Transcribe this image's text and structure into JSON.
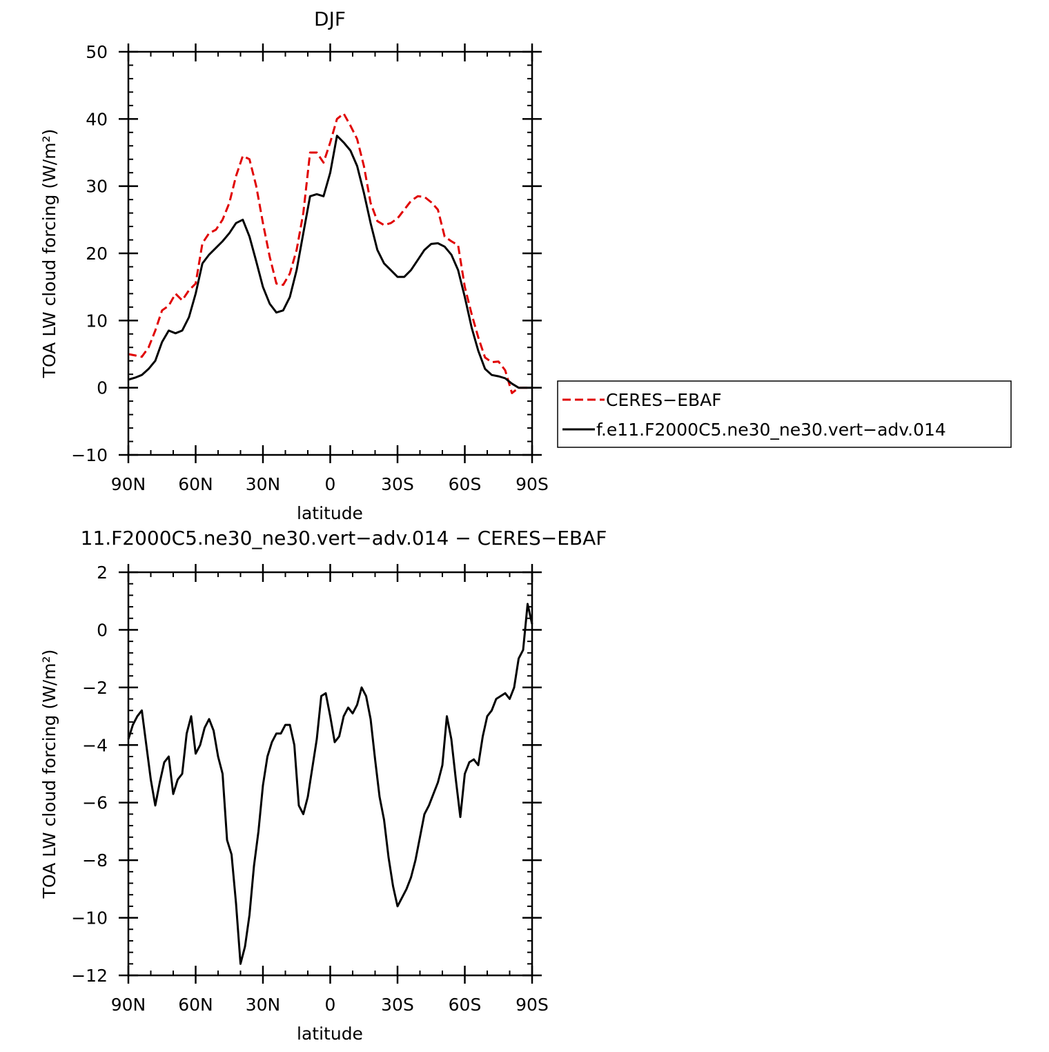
{
  "chart_data": [
    {
      "type": "line",
      "title": "DJF",
      "xlabel": "latitude",
      "ylabel": "TOA LW cloud forcing (W/m²)",
      "xlim": [
        90,
        -90
      ],
      "ylim": [
        -10,
        50
      ],
      "xticks": [
        90,
        60,
        30,
        0,
        -30,
        -60,
        -90
      ],
      "xtick_labels": [
        "90N",
        "60N",
        "30N",
        "0",
        "30S",
        "60S",
        "90S"
      ],
      "yticks": [
        -10,
        0,
        10,
        20,
        30,
        40,
        50
      ],
      "ytick_labels": [
        "−10",
        "0",
        "10",
        "20",
        "30",
        "40",
        "50"
      ],
      "legend_position": "right",
      "series": [
        {
          "name": "CERES−EBAF",
          "color": "#e00000",
          "style": "dashed",
          "x": [
            90,
            87,
            84,
            81,
            78,
            75,
            72,
            69,
            66,
            63,
            60,
            57,
            54,
            51,
            48,
            45,
            42,
            39,
            36,
            33,
            30,
            27,
            24,
            21,
            18,
            15,
            12,
            9,
            6,
            3,
            0,
            -3,
            -6,
            -9,
            -12,
            -15,
            -18,
            -21,
            -24,
            -27,
            -30,
            -33,
            -36,
            -39,
            -42,
            -45,
            -48,
            -51,
            -54,
            -57,
            -60,
            -63,
            -66,
            -69,
            -72,
            -75,
            -78,
            -81,
            -84,
            -87,
            -90
          ],
          "y": [
            5,
            4.8,
            4.6,
            6,
            8.5,
            11.5,
            12.2,
            14,
            13,
            14.5,
            15.5,
            21.5,
            23,
            23.5,
            25,
            27.5,
            31.5,
            34.5,
            34,
            30,
            24.5,
            19.5,
            15.5,
            15.3,
            17,
            20.5,
            26,
            35,
            35,
            33.5,
            36.5,
            40,
            40.8,
            39,
            37,
            33,
            27.5,
            24.8,
            24.2,
            24.5,
            25.2,
            26.5,
            27.8,
            28.5,
            28.4,
            27.6,
            26.5,
            22.5,
            21.8,
            21.2,
            15,
            11,
            7.5,
            4.5,
            3.8,
            3.9,
            2.6,
            -0.8,
            0,
            0,
            0
          ]
        },
        {
          "name": "f.e11.F2000C5.ne30_ne30.vert−adv.014",
          "color": "#000000",
          "style": "solid",
          "x": [
            90,
            87,
            84,
            81,
            78,
            75,
            72,
            69,
            66,
            63,
            60,
            57,
            54,
            51,
            48,
            45,
            42,
            39,
            36,
            33,
            30,
            27,
            24,
            21,
            18,
            15,
            12,
            9,
            6,
            3,
            0,
            -3,
            -6,
            -9,
            -12,
            -15,
            -18,
            -21,
            -24,
            -27,
            -30,
            -33,
            -36,
            -39,
            -42,
            -45,
            -48,
            -51,
            -54,
            -57,
            -60,
            -63,
            -66,
            -69,
            -72,
            -75,
            -78,
            -81,
            -84,
            -87,
            -90
          ],
          "y": [
            1.2,
            1.5,
            1.9,
            2.8,
            4,
            6.8,
            8.5,
            8.1,
            8.5,
            10.5,
            14,
            18.5,
            19.8,
            20.8,
            21.8,
            23,
            24.5,
            25,
            22.5,
            18.8,
            15,
            12.5,
            11.2,
            11.5,
            13.5,
            17.5,
            23,
            28.5,
            28.8,
            28.5,
            32,
            37.5,
            36.5,
            35.3,
            33,
            29,
            24.5,
            20.5,
            18.5,
            17.5,
            16.5,
            16.5,
            17.5,
            19,
            20.5,
            21.4,
            21.5,
            21,
            19.8,
            17.5,
            13.5,
            9,
            5.5,
            2.8,
            1.9,
            1.7,
            1.4,
            0.6,
            0,
            0,
            0
          ]
        }
      ]
    },
    {
      "type": "line",
      "title": "11.F2000C5.ne30_ne30.vert−adv.014 − CERES−EBAF",
      "xlabel": "latitude",
      "ylabel": "TOA LW cloud forcing (W/m²)",
      "xlim": [
        90,
        -90
      ],
      "ylim": [
        -12,
        2
      ],
      "xticks": [
        90,
        60,
        30,
        0,
        -30,
        -60,
        -90
      ],
      "xtick_labels": [
        "90N",
        "60N",
        "30N",
        "0",
        "30S",
        "60S",
        "90S"
      ],
      "yticks": [
        -12,
        -10,
        -8,
        -6,
        -4,
        -2,
        0,
        2
      ],
      "ytick_labels": [
        "−12",
        "−10",
        "−8",
        "−6",
        "−4",
        "−2",
        "0",
        "2"
      ],
      "series": [
        {
          "name": "",
          "color": "#000000",
          "style": "solid",
          "x": [
            90,
            88,
            86,
            84,
            82,
            80,
            78,
            76,
            74,
            72,
            70,
            68,
            66,
            64,
            62,
            60,
            58,
            56,
            54,
            52,
            50,
            48,
            46,
            44,
            42,
            40,
            38,
            36,
            34,
            32,
            30,
            28,
            26,
            24,
            22,
            20,
            18,
            16,
            14,
            12,
            10,
            8,
            6,
            4,
            2,
            0,
            -2,
            -4,
            -6,
            -8,
            -10,
            -12,
            -14,
            -16,
            -18,
            -20,
            -22,
            -24,
            -26,
            -28,
            -30,
            -32,
            -34,
            -36,
            -38,
            -40,
            -42,
            -44,
            -46,
            -48,
            -50,
            -52,
            -54,
            -56,
            -58,
            -60,
            -62,
            -64,
            -66,
            -68,
            -70,
            -72,
            -74,
            -76,
            -78,
            -80,
            -82,
            -84,
            -86,
            -88,
            -90
          ],
          "y": [
            -3.8,
            -3.3,
            -3.0,
            -2.8,
            -4.0,
            -5.2,
            -6.1,
            -5.3,
            -4.6,
            -4.4,
            -5.7,
            -5.2,
            -5.0,
            -3.6,
            -3.0,
            -4.3,
            -4.0,
            -3.4,
            -3.1,
            -3.5,
            -4.4,
            -5.0,
            -7.3,
            -7.8,
            -9.5,
            -11.6,
            -11.0,
            -9.9,
            -8.2,
            -7.0,
            -5.4,
            -4.4,
            -3.9,
            -3.6,
            -3.6,
            -3.3,
            -3.3,
            -4.0,
            -6.1,
            -6.4,
            -5.8,
            -4.8,
            -3.8,
            -2.3,
            -2.2,
            -3.0,
            -3.9,
            -3.7,
            -3.0,
            -2.7,
            -2.9,
            -2.6,
            -2.0,
            -2.3,
            -3.1,
            -4.5,
            -5.8,
            -6.6,
            -7.9,
            -8.9,
            -9.6,
            -9.3,
            -9.0,
            -8.6,
            -8.0,
            -7.2,
            -6.4,
            -6.1,
            -5.7,
            -5.3,
            -4.7,
            -3.0,
            -3.8,
            -5.2,
            -6.5,
            -5.0,
            -4.6,
            -4.5,
            -4.7,
            -3.7,
            -3.0,
            -2.8,
            -2.4,
            -2.3,
            -2.2,
            -2.4,
            -2.0,
            -1.0,
            -0.7,
            0.9,
            0.2
          ]
        }
      ]
    }
  ]
}
